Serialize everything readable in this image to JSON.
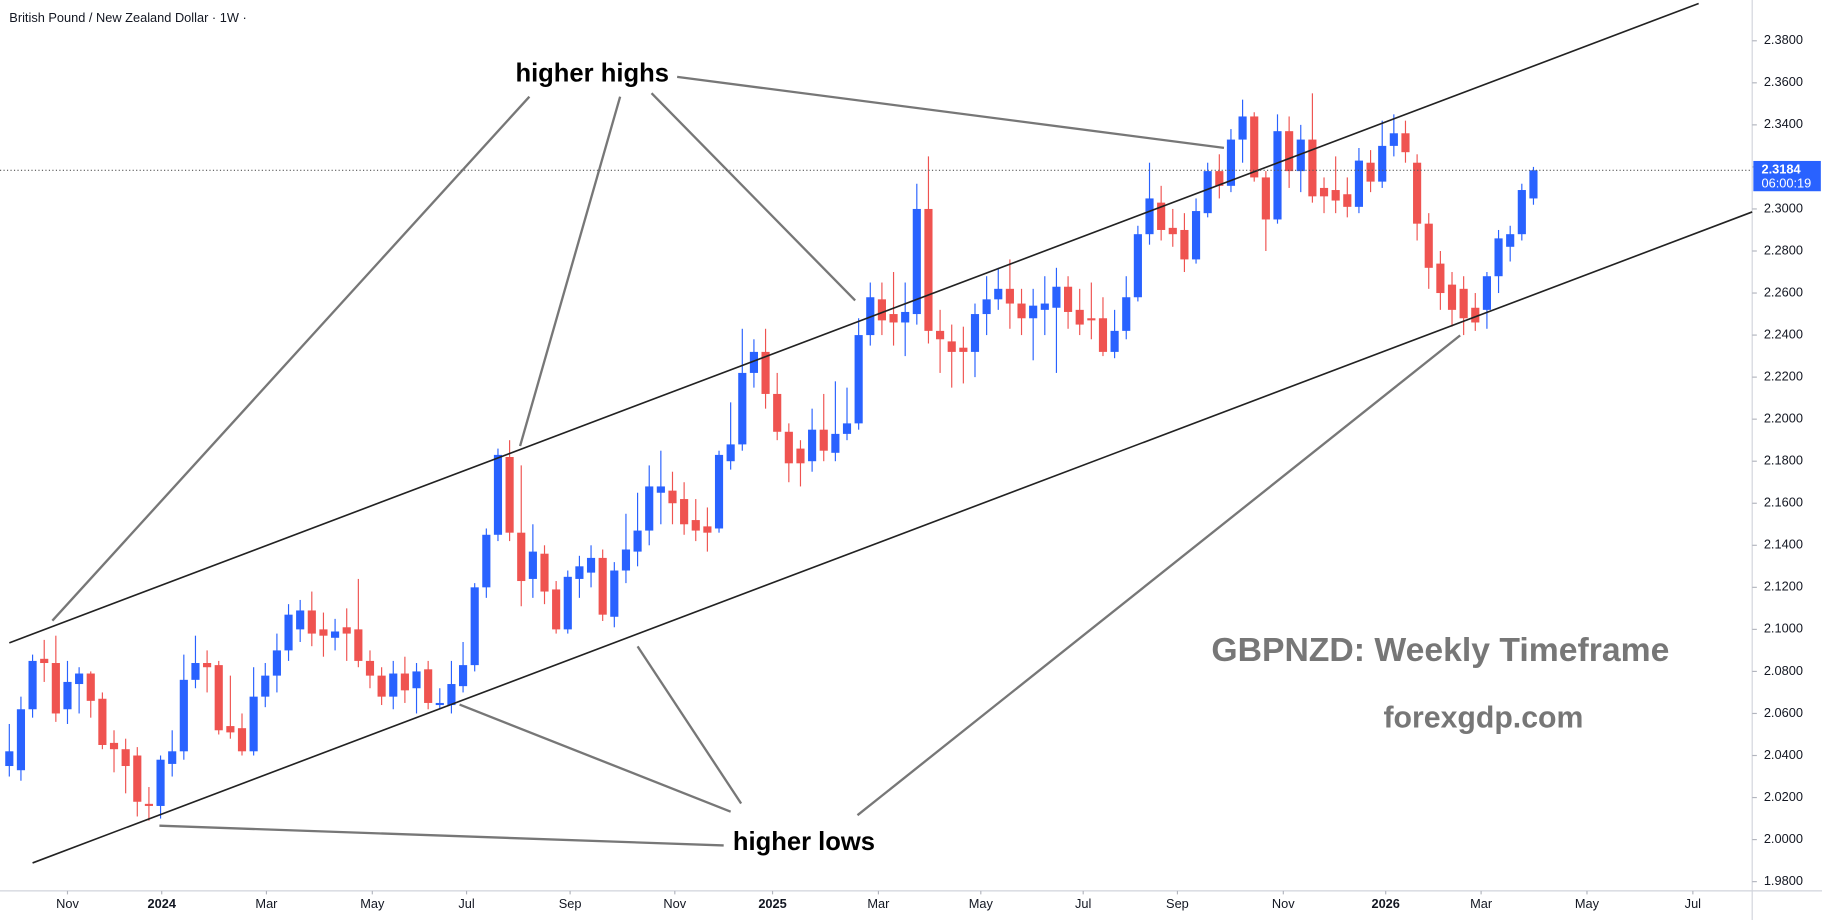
{
  "chart_data": {
    "type": "candlestick",
    "header": "British Pound / New Zealand Dollar · 1W ·",
    "annotations": [
      "higher highs",
      "higher lows",
      "GBPNZD: Weekly Timeframe",
      "forexgdp.com"
    ],
    "up_color": "#2962ff",
    "down_color": "#ef5350",
    "last_price": 2.3184,
    "countdown": "06:00:19",
    "open": [
      2.035,
      2.033,
      2.062,
      2.086,
      2.084,
      2.062,
      2.074,
      2.079,
      2.067,
      2.046,
      2.043,
      2.04,
      2.017,
      2.016,
      2.036,
      2.042,
      2.076,
      2.084,
      2.083,
      2.054,
      2.053,
      2.042,
      2.068,
      2.078,
      2.09,
      2.1,
      2.109,
      2.1,
      2.096,
      2.101,
      2.1,
      2.085,
      2.078,
      2.068,
      2.079,
      2.072,
      2.081,
      2.064,
      2.064,
      2.073,
      2.083,
      2.12,
      2.145,
      2.182,
      2.146,
      2.124,
      2.136,
      2.119,
      2.1,
      2.124,
      2.127,
      2.134,
      2.106,
      2.128,
      2.137,
      2.147,
      2.165,
      2.166,
      2.162,
      2.152,
      2.149,
      2.148,
      2.18,
      2.188,
      2.222,
      2.232,
      2.212,
      2.194,
      2.186,
      2.18,
      2.195,
      2.184,
      2.193,
      2.198,
      2.24,
      2.257,
      2.25,
      2.246,
      2.25,
      2.3,
      2.242,
      2.237,
      2.234,
      2.232,
      2.25,
      2.257,
      2.262,
      2.255,
      2.248,
      2.252,
      2.253,
      2.263,
      2.252,
      2.248,
      2.248,
      2.232,
      2.242,
      2.258,
      2.288,
      2.303,
      2.291,
      2.29,
      2.276,
      2.298,
      2.318,
      2.311,
      2.333,
      2.344,
      2.315,
      2.295,
      2.337,
      2.318,
      2.333,
      2.31,
      2.309,
      2.307,
      2.301,
      2.322,
      2.313,
      2.33,
      2.336,
      2.322,
      2.293,
      2.274,
      2.264,
      2.262,
      2.253,
      2.252,
      2.268,
      2.282,
      2.288,
      2.305
    ],
    "close": [
      2.042,
      2.062,
      2.085,
      2.084,
      2.06,
      2.075,
      2.079,
      2.066,
      2.045,
      2.043,
      2.035,
      2.018,
      2.016,
      2.038,
      2.042,
      2.076,
      2.084,
      2.082,
      2.052,
      2.051,
      2.042,
      2.068,
      2.078,
      2.09,
      2.107,
      2.109,
      2.098,
      2.097,
      2.099,
      2.098,
      2.085,
      2.078,
      2.068,
      2.079,
      2.071,
      2.08,
      2.065,
      2.065,
      2.074,
      2.083,
      2.12,
      2.145,
      2.183,
      2.146,
      2.123,
      2.137,
      2.118,
      2.1,
      2.125,
      2.13,
      2.134,
      2.107,
      2.128,
      2.138,
      2.147,
      2.168,
      2.168,
      2.16,
      2.15,
      2.147,
      2.146,
      2.183,
      2.188,
      2.222,
      2.232,
      2.212,
      2.194,
      2.179,
      2.179,
      2.195,
      2.185,
      2.193,
      2.198,
      2.24,
      2.258,
      2.247,
      2.246,
      2.251,
      2.3,
      2.242,
      2.238,
      2.232,
      2.232,
      2.25,
      2.257,
      2.262,
      2.255,
      2.248,
      2.254,
      2.255,
      2.263,
      2.251,
      2.245,
      2.247,
      2.232,
      2.242,
      2.258,
      2.288,
      2.305,
      2.29,
      2.288,
      2.276,
      2.299,
      2.318,
      2.311,
      2.333,
      2.344,
      2.315,
      2.295,
      2.337,
      2.318,
      2.333,
      2.306,
      2.306,
      2.304,
      2.301,
      2.323,
      2.313,
      2.33,
      2.336,
      2.327,
      2.293,
      2.272,
      2.26,
      2.252,
      2.248,
      2.246,
      2.268,
      2.286,
      2.288,
      2.309,
      2.3184
    ],
    "high": [
      2.055,
      2.068,
      2.088,
      2.095,
      2.097,
      2.085,
      2.082,
      2.08,
      2.07,
      2.052,
      2.048,
      2.044,
      2.025,
      2.04,
      2.052,
      2.088,
      2.097,
      2.09,
      2.085,
      2.078,
      2.06,
      2.082,
      2.084,
      2.098,
      2.112,
      2.114,
      2.118,
      2.108,
      2.105,
      2.11,
      2.124,
      2.09,
      2.082,
      2.085,
      2.087,
      2.084,
      2.085,
      2.072,
      2.085,
      2.094,
      2.122,
      2.148,
      2.186,
      2.19,
      2.178,
      2.15,
      2.14,
      2.123,
      2.128,
      2.135,
      2.14,
      2.138,
      2.132,
      2.155,
      2.165,
      2.178,
      2.185,
      2.175,
      2.17,
      2.162,
      2.158,
      2.185,
      2.208,
      2.243,
      2.238,
      2.243,
      2.222,
      2.198,
      2.19,
      2.205,
      2.212,
      2.218,
      2.215,
      2.248,
      2.265,
      2.265,
      2.27,
      2.265,
      2.312,
      2.325,
      2.252,
      2.245,
      2.244,
      2.255,
      2.268,
      2.272,
      2.276,
      2.262,
      2.262,
      2.268,
      2.272,
      2.268,
      2.262,
      2.265,
      2.258,
      2.252,
      2.268,
      2.292,
      2.322,
      2.311,
      2.3,
      2.298,
      2.305,
      2.322,
      2.326,
      2.338,
      2.352,
      2.346,
      2.318,
      2.345,
      2.344,
      2.34,
      2.355,
      2.315,
      2.325,
      2.315,
      2.329,
      2.328,
      2.342,
      2.345,
      2.342,
      2.326,
      2.298,
      2.28,
      2.27,
      2.268,
      2.26,
      2.27,
      2.29,
      2.292,
      2.312,
      2.32
    ],
    "low": [
      2.03,
      2.028,
      2.058,
      2.075,
      2.056,
      2.055,
      2.06,
      2.058,
      2.043,
      2.032,
      2.022,
      2.011,
      2.009,
      2.01,
      2.03,
      2.038,
      2.072,
      2.07,
      2.05,
      2.048,
      2.04,
      2.04,
      2.063,
      2.07,
      2.085,
      2.094,
      2.092,
      2.087,
      2.09,
      2.085,
      2.082,
      2.072,
      2.064,
      2.062,
      2.065,
      2.06,
      2.062,
      2.062,
      2.06,
      2.07,
      2.08,
      2.115,
      2.142,
      2.142,
      2.111,
      2.115,
      2.112,
      2.098,
      2.098,
      2.115,
      2.12,
      2.104,
      2.101,
      2.122,
      2.13,
      2.14,
      2.15,
      2.15,
      2.145,
      2.142,
      2.137,
      2.146,
      2.176,
      2.185,
      2.215,
      2.205,
      2.19,
      2.17,
      2.168,
      2.175,
      2.18,
      2.18,
      2.19,
      2.195,
      2.235,
      2.24,
      2.235,
      2.23,
      2.245,
      2.236,
      2.222,
      2.215,
      2.217,
      2.22,
      2.24,
      2.252,
      2.243,
      2.24,
      2.228,
      2.24,
      2.222,
      2.243,
      2.24,
      2.238,
      2.23,
      2.229,
      2.238,
      2.256,
      2.283,
      2.285,
      2.282,
      2.27,
      2.274,
      2.296,
      2.305,
      2.308,
      2.322,
      2.313,
      2.28,
      2.293,
      2.31,
      2.308,
      2.303,
      2.298,
      2.298,
      2.296,
      2.298,
      2.308,
      2.31,
      2.325,
      2.322,
      2.285,
      2.262,
      2.252,
      2.244,
      2.24,
      2.242,
      2.243,
      2.26,
      2.275,
      2.285,
      2.302
    ],
    "xlim": [
      -0.8,
      149.8
    ],
    "xticks": [
      {
        "value": 5,
        "label": "Nov"
      },
      {
        "value": 13.1,
        "label": "2024"
      },
      {
        "value": 22.1,
        "label": "Mar"
      },
      {
        "value": 31.2,
        "label": "May"
      },
      {
        "value": 39.3,
        "label": "Jul"
      },
      {
        "value": 48.2,
        "label": "Sep"
      },
      {
        "value": 57.2,
        "label": "Nov"
      },
      {
        "value": 65.6,
        "label": "2025"
      },
      {
        "value": 74.7,
        "label": "Mar"
      },
      {
        "value": 83.5,
        "label": "May"
      },
      {
        "value": 92.3,
        "label": "Jul"
      },
      {
        "value": 100.4,
        "label": "Sep"
      },
      {
        "value": 109.5,
        "label": "Nov"
      },
      {
        "value": 118.3,
        "label": "2026"
      },
      {
        "value": 126.5,
        "label": "Mar"
      },
      {
        "value": 135.6,
        "label": "May"
      },
      {
        "value": 144.7,
        "label": "Jul"
      }
    ],
    "ylim": [
      1.9756,
      2.3994
    ],
    "yticks": [
      {
        "value": 1.98,
        "label": "1.9800"
      },
      {
        "value": 2.0,
        "label": "2.0000"
      },
      {
        "value": 2.02,
        "label": "2.0200"
      },
      {
        "value": 2.04,
        "label": "2.0400"
      },
      {
        "value": 2.06,
        "label": "2.0600"
      },
      {
        "value": 2.08,
        "label": "2.0800"
      },
      {
        "value": 2.1,
        "label": "2.1000"
      },
      {
        "value": 2.12,
        "label": "2.1200"
      },
      {
        "value": 2.14,
        "label": "2.1400"
      },
      {
        "value": 2.16,
        "label": "2.1600"
      },
      {
        "value": 2.18,
        "label": "2.1800"
      },
      {
        "value": 2.2,
        "label": "2.2000"
      },
      {
        "value": 2.22,
        "label": "2.2200"
      },
      {
        "value": 2.24,
        "label": "2.2400"
      },
      {
        "value": 2.26,
        "label": "2.2600"
      },
      {
        "value": 2.28,
        "label": "2.2800"
      },
      {
        "value": 2.3,
        "label": "2.3000"
      },
      {
        "value": 2.32,
        "label": "2.3200"
      },
      {
        "value": 2.34,
        "label": "2.3400"
      },
      {
        "value": 2.36,
        "label": "2.3600"
      },
      {
        "value": 2.38,
        "label": "2.3800"
      }
    ]
  }
}
